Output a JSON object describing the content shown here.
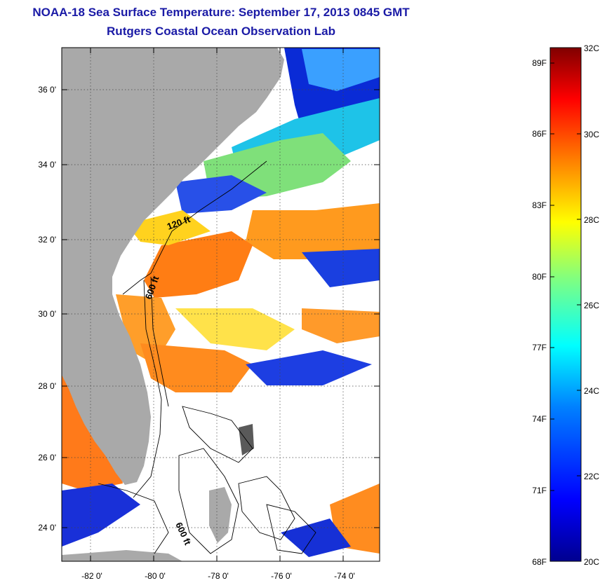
{
  "header": {
    "title": "NOAA-18 Sea Surface Temperature:  September 17, 2013 0845 GMT",
    "subtitle": "Rutgers Coastal Ocean Observation Lab"
  },
  "map": {
    "lat_labels": [
      "36 0'",
      "34 0'",
      "32 0'",
      "30 0'",
      "28 0'",
      "26 0'",
      "24 0'"
    ],
    "lon_labels": [
      "-82 0'",
      "-80 0'",
      "-78 0'",
      "-76 0'",
      "-74 0'"
    ],
    "depth_labels": [
      "120 ft",
      "600 ft",
      "600 ft"
    ],
    "land_color": "#a9a9a9",
    "no_data_color": "#ffffff"
  },
  "colorbar": {
    "fahrenheit_labels": [
      "89F",
      "86F",
      "83F",
      "80F",
      "77F",
      "74F",
      "71F",
      "68F"
    ],
    "celsius_labels": [
      "32C",
      "30C",
      "28C",
      "26C",
      "24C",
      "22C",
      "20C"
    ],
    "colors": [
      "#800000",
      "#ff0000",
      "#ff8000",
      "#ffff00",
      "#80ff80",
      "#00ffff",
      "#0080ff",
      "#0000ff",
      "#00008f"
    ]
  }
}
